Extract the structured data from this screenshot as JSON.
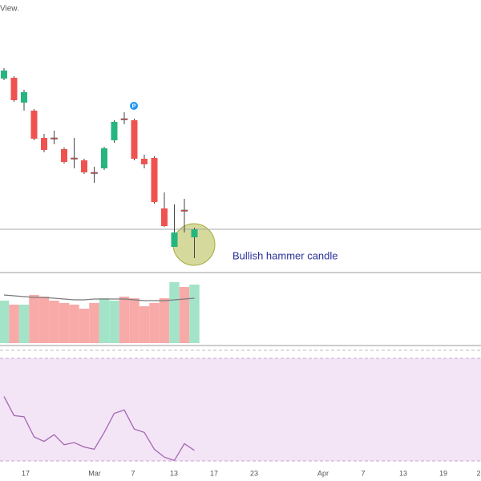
{
  "chart_data": [
    {
      "type": "candlestick",
      "watermark": "View.",
      "badge": "P",
      "annotation": "Bullish hammer candle",
      "open": [
        242,
        243,
        212,
        202,
        168,
        168,
        154,
        143,
        140,
        125,
        130,
        165,
        192,
        190,
        142,
        143,
        80,
        32,
        78,
        44
      ],
      "close": [
        252,
        215,
        225,
        167,
        153,
        167,
        138,
        142,
        125,
        124,
        155,
        188,
        191,
        142,
        135,
        88,
        58,
        50,
        77,
        54
      ],
      "high": [
        255,
        245,
        228,
        204,
        173,
        177,
        156,
        168,
        142,
        132,
        157,
        190,
        200,
        192,
        147,
        145,
        100,
        85,
        92,
        56
      ],
      "low": [
        240,
        213,
        202,
        165,
        150,
        160,
        136,
        130,
        123,
        112,
        128,
        162,
        185,
        140,
        130,
        86,
        57,
        32,
        50,
        18
      ],
      "up_color": "#26b57f",
      "down_color": "#ef5350",
      "support": 54,
      "ylim": [
        0,
        340
      ]
    },
    {
      "type": "bar",
      "values": [
        53,
        48,
        48,
        60,
        58,
        53,
        50,
        48,
        43,
        50,
        56,
        53,
        58,
        56,
        46,
        50,
        56,
        76,
        70,
        73
      ],
      "ma": [
        60,
        59,
        58,
        57,
        57,
        56,
        55,
        54,
        54,
        55,
        55,
        55,
        55,
        54,
        53,
        53,
        53,
        54,
        55,
        56
      ],
      "up_color": "#a3e4c9",
      "down_color": "#f7aaa8",
      "ma_color": "#7a7a7a",
      "ylim": [
        0,
        86
      ]
    },
    {
      "type": "line",
      "values": [
        61,
        44,
        43,
        25,
        21,
        27,
        18,
        20,
        16,
        14,
        29,
        46,
        49,
        32,
        29,
        14,
        7,
        4,
        19,
        13
      ],
      "color": "#a566b5",
      "band_color": "#f3e5f5",
      "x_labels": [
        "17",
        "Mar",
        "7",
        "13",
        "17",
        "23",
        "Apr",
        "7",
        "13",
        "19",
        "2"
      ],
      "ylim": [
        0,
        100
      ]
    }
  ]
}
